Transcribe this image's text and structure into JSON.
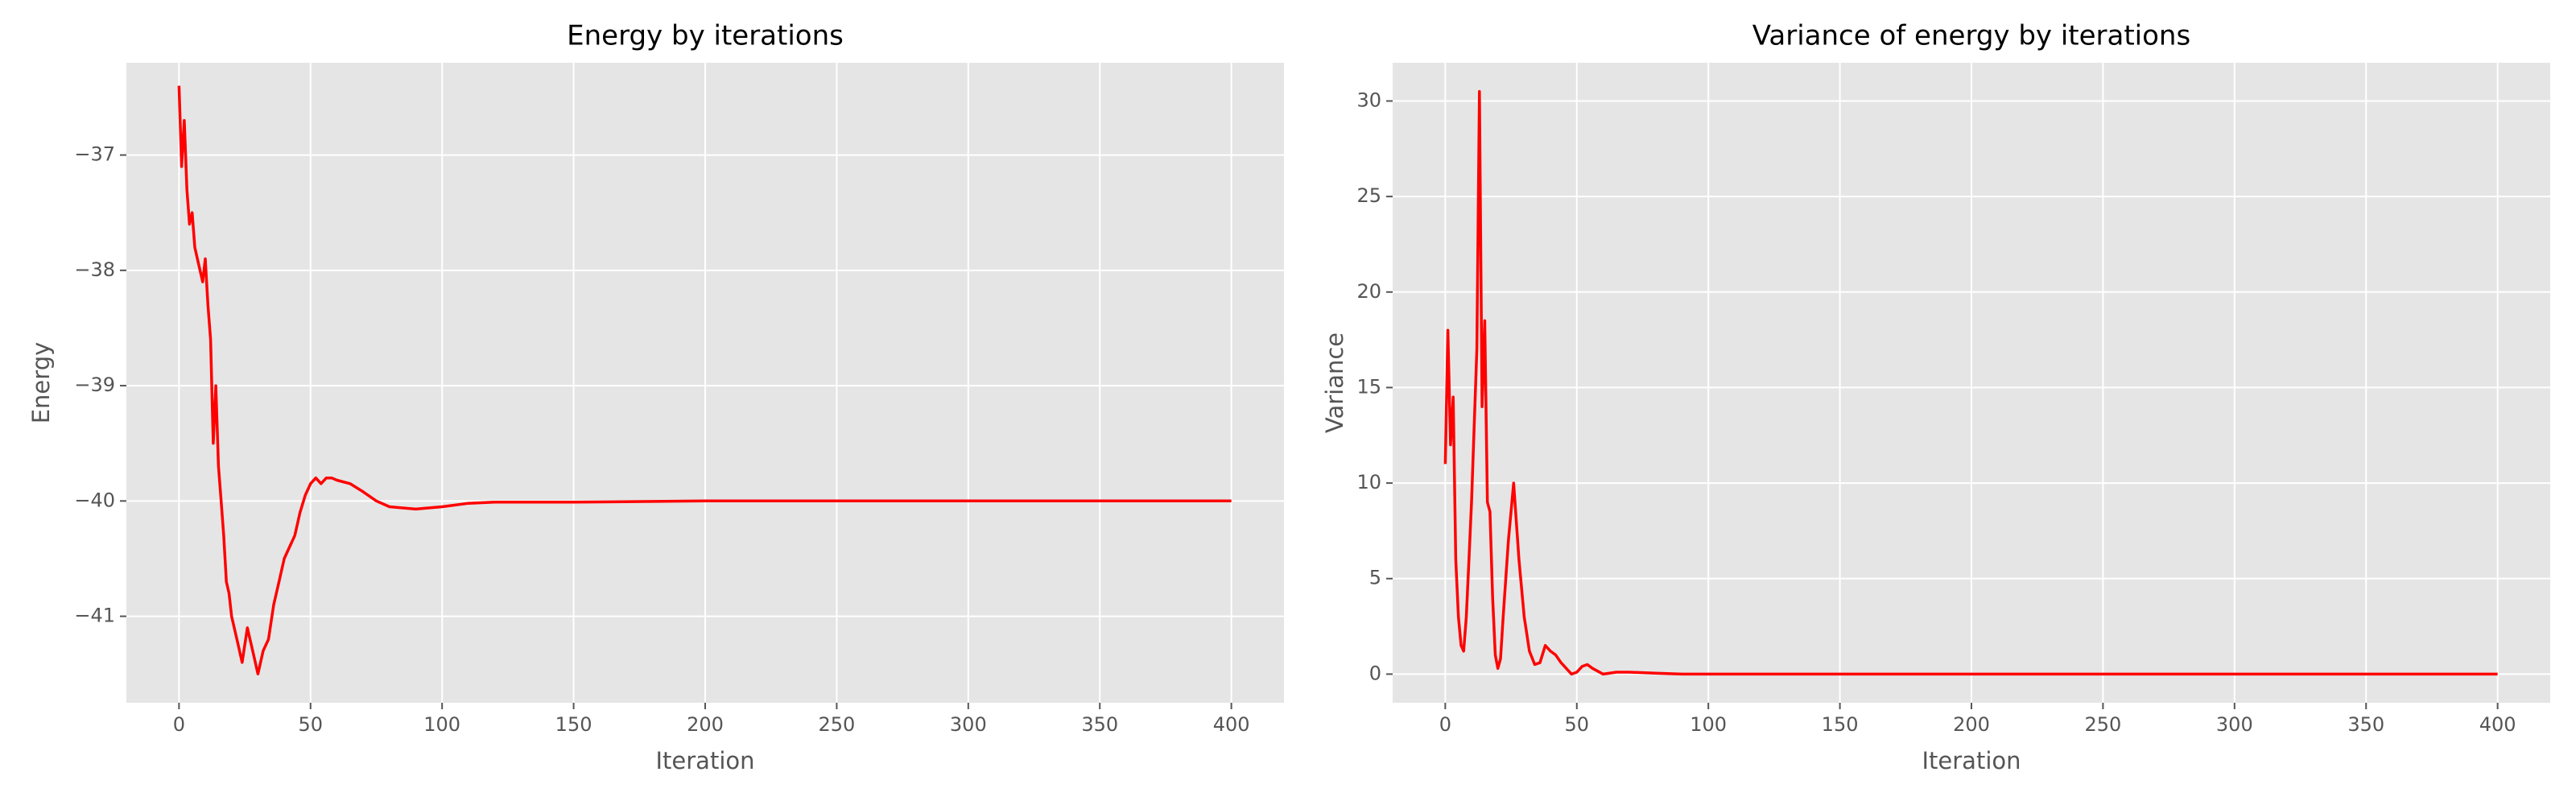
{
  "chart_data": [
    {
      "type": "line",
      "title": "Energy by iterations",
      "xlabel": "Iteration",
      "ylabel": "Energy",
      "color": "#ff0000",
      "grid": true,
      "x": [
        0,
        1,
        2,
        3,
        4,
        5,
        6,
        7,
        8,
        9,
        10,
        11,
        12,
        13,
        14,
        15,
        16,
        17,
        18,
        19,
        20,
        22,
        24,
        26,
        28,
        30,
        32,
        34,
        36,
        38,
        40,
        42,
        44,
        46,
        48,
        50,
        52,
        54,
        56,
        58,
        60,
        65,
        70,
        75,
        80,
        90,
        100,
        110,
        120,
        130,
        150,
        200,
        250,
        300,
        350,
        400
      ],
      "values": [
        -36.4,
        -37.1,
        -36.7,
        -37.3,
        -37.6,
        -37.5,
        -37.8,
        -37.9,
        -38.0,
        -38.1,
        -37.9,
        -38.3,
        -38.6,
        -39.5,
        -39.0,
        -39.7,
        -40.0,
        -40.3,
        -40.7,
        -40.8,
        -41.0,
        -41.2,
        -41.4,
        -41.1,
        -41.3,
        -41.5,
        -41.3,
        -41.2,
        -40.9,
        -40.7,
        -40.5,
        -40.4,
        -40.3,
        -40.1,
        -39.95,
        -39.85,
        -39.8,
        -39.85,
        -39.8,
        -39.8,
        -39.82,
        -39.85,
        -39.92,
        -40.0,
        -40.05,
        -40.07,
        -40.05,
        -40.02,
        -40.01,
        -40.01,
        -40.01,
        -40.0,
        -40.0,
        -40.0,
        -40.0,
        -40.0
      ],
      "xlim": [
        -20,
        420
      ],
      "xticks": [
        0,
        50,
        100,
        150,
        200,
        250,
        300,
        350,
        400
      ],
      "ylim": [
        -41.75,
        -36.2
      ],
      "yticks": [
        {
          "value": -41,
          "label": "−41"
        },
        {
          "value": -40,
          "label": "−40"
        },
        {
          "value": -39,
          "label": "−39"
        },
        {
          "value": -38,
          "label": "−38"
        },
        {
          "value": -37,
          "label": "−37"
        }
      ]
    },
    {
      "type": "line",
      "title": "Variance of energy by iterations",
      "xlabel": "Iteration",
      "ylabel": "Variance",
      "color": "#ff0000",
      "grid": true,
      "x": [
        0,
        1,
        2,
        3,
        4,
        5,
        6,
        7,
        8,
        9,
        10,
        11,
        12,
        13,
        14,
        15,
        16,
        17,
        18,
        19,
        20,
        21,
        22,
        24,
        26,
        28,
        30,
        32,
        34,
        36,
        38,
        40,
        42,
        44,
        46,
        48,
        50,
        52,
        54,
        56,
        60,
        65,
        70,
        80,
        90,
        100,
        150,
        200,
        300,
        400
      ],
      "values": [
        11,
        18,
        12,
        14.5,
        6,
        3,
        1.5,
        1.2,
        3,
        6,
        9,
        13,
        17,
        30.5,
        14,
        18.5,
        9,
        8.5,
        4,
        1,
        0.3,
        0.8,
        3,
        7,
        10,
        6,
        3,
        1.2,
        0.5,
        0.6,
        1.5,
        1.2,
        1.0,
        0.6,
        0.3,
        0.0,
        0.1,
        0.4,
        0.5,
        0.3,
        0.0,
        0.1,
        0.1,
        0.05,
        0,
        0,
        0,
        0,
        0,
        0
      ],
      "xlim": [
        -20,
        420
      ],
      "xticks": [
        0,
        50,
        100,
        150,
        200,
        250,
        300,
        350,
        400
      ],
      "ylim": [
        -1.5,
        32
      ],
      "yticks": [
        0,
        5,
        10,
        15,
        20,
        25,
        30
      ]
    }
  ]
}
